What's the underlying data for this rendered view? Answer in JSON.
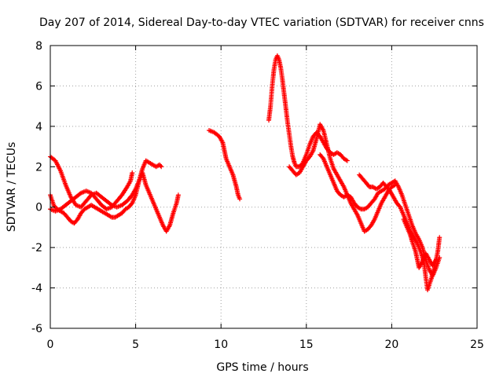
{
  "chart_data": {
    "type": "scatter",
    "title": "Day 207 of 2014, Sidereal Day-to-day VTEC variation (SDTVAR) for receiver cnns",
    "xlabel": "GPS time / hours",
    "ylabel": "SDTVAR / TECUs",
    "xlim": [
      0,
      25
    ],
    "ylim": [
      -6,
      8
    ],
    "x_ticks": [
      0,
      5,
      10,
      15,
      20,
      25
    ],
    "y_ticks": [
      -6,
      -4,
      -2,
      0,
      2,
      4,
      6,
      8
    ],
    "grid": true,
    "marker": "+",
    "series": [
      {
        "name": "SDTVAR",
        "color": "#ff0000",
        "segments": [
          [
            [
              0.0,
              2.5
            ],
            [
              0.3,
              2.3
            ],
            [
              0.6,
              1.8
            ],
            [
              0.9,
              1.1
            ],
            [
              1.2,
              0.5
            ],
            [
              1.5,
              0.1
            ],
            [
              1.8,
              0.0
            ],
            [
              2.1,
              0.3
            ],
            [
              2.4,
              0.6
            ],
            [
              2.7,
              0.7
            ],
            [
              3.0,
              0.5
            ],
            [
              3.3,
              0.3
            ],
            [
              3.6,
              0.1
            ],
            [
              3.9,
              0.0
            ],
            [
              4.2,
              0.1
            ],
            [
              4.5,
              0.3
            ],
            [
              4.8,
              0.6
            ],
            [
              5.0,
              0.9
            ],
            [
              5.2,
              1.3
            ],
            [
              5.4,
              1.7
            ],
            [
              5.6,
              1.1
            ],
            [
              5.8,
              0.7
            ],
            [
              6.0,
              0.3
            ],
            [
              6.2,
              -0.1
            ],
            [
              6.4,
              -0.5
            ],
            [
              6.6,
              -0.9
            ],
            [
              6.8,
              -1.2
            ],
            [
              7.0,
              -0.9
            ],
            [
              7.2,
              -0.3
            ],
            [
              7.4,
              0.2
            ],
            [
              7.5,
              0.6
            ]
          ],
          [
            [
              0.0,
              0.6
            ],
            [
              0.2,
              0.1
            ],
            [
              0.4,
              -0.1
            ],
            [
              0.6,
              -0.2
            ],
            [
              0.8,
              -0.3
            ],
            [
              1.0,
              -0.5
            ],
            [
              1.2,
              -0.7
            ],
            [
              1.4,
              -0.8
            ],
            [
              1.6,
              -0.6
            ],
            [
              1.8,
              -0.3
            ],
            [
              2.0,
              -0.1
            ],
            [
              2.2,
              0.0
            ],
            [
              2.4,
              0.1
            ],
            [
              2.6,
              0.0
            ],
            [
              2.8,
              -0.1
            ],
            [
              3.0,
              -0.2
            ],
            [
              3.2,
              -0.3
            ],
            [
              3.4,
              -0.4
            ],
            [
              3.6,
              -0.5
            ],
            [
              3.8,
              -0.5
            ],
            [
              4.0,
              -0.4
            ],
            [
              4.2,
              -0.3
            ],
            [
              4.4,
              -0.1
            ],
            [
              4.6,
              0.0
            ],
            [
              4.8,
              0.2
            ],
            [
              5.0,
              0.6
            ],
            [
              5.2,
              1.3
            ],
            [
              5.4,
              1.9
            ],
            [
              5.6,
              2.3
            ],
            [
              5.8,
              2.2
            ],
            [
              6.0,
              2.1
            ],
            [
              6.2,
              2.0
            ],
            [
              6.4,
              2.1
            ],
            [
              6.5,
              2.0
            ]
          ],
          [
            [
              0.0,
              -0.1
            ],
            [
              0.3,
              -0.2
            ],
            [
              0.6,
              -0.1
            ],
            [
              0.9,
              0.1
            ],
            [
              1.2,
              0.3
            ],
            [
              1.5,
              0.5
            ],
            [
              1.8,
              0.7
            ],
            [
              2.1,
              0.8
            ],
            [
              2.4,
              0.7
            ],
            [
              2.7,
              0.4
            ],
            [
              3.0,
              0.1
            ],
            [
              3.3,
              -0.1
            ],
            [
              3.6,
              0.0
            ],
            [
              3.9,
              0.3
            ],
            [
              4.2,
              0.6
            ],
            [
              4.5,
              1.0
            ],
            [
              4.7,
              1.3
            ],
            [
              4.8,
              1.7
            ]
          ],
          [
            [
              9.3,
              3.8
            ],
            [
              9.6,
              3.7
            ],
            [
              9.9,
              3.5
            ],
            [
              10.1,
              3.2
            ],
            [
              10.2,
              2.8
            ],
            [
              10.3,
              2.4
            ],
            [
              10.5,
              2.0
            ],
            [
              10.7,
              1.6
            ],
            [
              10.9,
              1.0
            ],
            [
              11.0,
              0.6
            ],
            [
              11.1,
              0.4
            ]
          ],
          [
            [
              12.8,
              4.3
            ],
            [
              12.9,
              5.0
            ],
            [
              13.0,
              6.0
            ],
            [
              13.1,
              6.8
            ],
            [
              13.2,
              7.3
            ],
            [
              13.3,
              7.5
            ],
            [
              13.4,
              7.3
            ],
            [
              13.5,
              6.9
            ],
            [
              13.6,
              6.3
            ],
            [
              13.7,
              5.6
            ],
            [
              13.8,
              4.9
            ],
            [
              13.9,
              4.2
            ],
            [
              14.0,
              3.6
            ],
            [
              14.1,
              3.0
            ],
            [
              14.2,
              2.5
            ],
            [
              14.3,
              2.2
            ],
            [
              14.4,
              2.0
            ],
            [
              14.6,
              2.0
            ],
            [
              14.8,
              2.2
            ],
            [
              15.0,
              2.6
            ],
            [
              15.2,
              3.1
            ],
            [
              15.4,
              3.5
            ],
            [
              15.6,
              3.7
            ],
            [
              15.8,
              3.5
            ],
            [
              16.0,
              3.2
            ],
            [
              16.2,
              2.9
            ],
            [
              16.4,
              2.7
            ],
            [
              16.6,
              2.6
            ],
            [
              16.8,
              2.7
            ],
            [
              17.0,
              2.6
            ],
            [
              17.2,
              2.4
            ],
            [
              17.4,
              2.3
            ]
          ],
          [
            [
              14.0,
              2.0
            ],
            [
              14.2,
              1.8
            ],
            [
              14.4,
              1.6
            ],
            [
              14.6,
              1.7
            ],
            [
              14.8,
              2.0
            ],
            [
              15.0,
              2.3
            ],
            [
              15.2,
              2.5
            ],
            [
              15.4,
              2.8
            ],
            [
              15.6,
              3.4
            ],
            [
              15.8,
              4.1
            ],
            [
              16.0,
              3.8
            ],
            [
              16.2,
              3.1
            ],
            [
              16.4,
              2.4
            ],
            [
              16.6,
              1.9
            ],
            [
              16.8,
              1.6
            ],
            [
              17.0,
              1.3
            ],
            [
              17.2,
              1.0
            ],
            [
              17.4,
              0.6
            ],
            [
              17.6,
              0.2
            ],
            [
              17.8,
              -0.1
            ],
            [
              18.0,
              -0.4
            ],
            [
              18.2,
              -0.8
            ],
            [
              18.4,
              -1.2
            ],
            [
              18.6,
              -1.1
            ],
            [
              18.8,
              -0.9
            ],
            [
              19.0,
              -0.6
            ],
            [
              19.2,
              -0.2
            ],
            [
              19.4,
              0.2
            ],
            [
              19.6,
              0.5
            ],
            [
              19.8,
              0.8
            ],
            [
              20.0,
              1.0
            ],
            [
              20.2,
              1.1
            ]
          ],
          [
            [
              15.8,
              2.6
            ],
            [
              16.0,
              2.4
            ],
            [
              16.2,
              2.0
            ],
            [
              16.4,
              1.6
            ],
            [
              16.6,
              1.2
            ],
            [
              16.8,
              0.8
            ],
            [
              17.0,
              0.6
            ],
            [
              17.2,
              0.5
            ],
            [
              17.4,
              0.6
            ],
            [
              17.6,
              0.5
            ],
            [
              17.8,
              0.2
            ],
            [
              18.0,
              0.0
            ],
            [
              18.2,
              -0.1
            ],
            [
              18.4,
              -0.1
            ],
            [
              18.6,
              0.0
            ],
            [
              18.8,
              0.2
            ],
            [
              19.0,
              0.4
            ],
            [
              19.2,
              0.7
            ],
            [
              19.4,
              0.8
            ],
            [
              19.6,
              0.9
            ],
            [
              19.8,
              1.1
            ],
            [
              20.0,
              1.2
            ],
            [
              20.2,
              1.3
            ],
            [
              20.4,
              1.0
            ],
            [
              20.6,
              0.6
            ],
            [
              20.8,
              0.1
            ],
            [
              21.0,
              -0.4
            ],
            [
              21.2,
              -0.9
            ],
            [
              21.4,
              -1.3
            ],
            [
              21.6,
              -1.6
            ],
            [
              21.8,
              -2.0
            ],
            [
              22.0,
              -2.6
            ],
            [
              22.2,
              -3.1
            ],
            [
              22.4,
              -3.4
            ],
            [
              22.6,
              -3.0
            ],
            [
              22.8,
              -2.5
            ]
          ],
          [
            [
              18.1,
              1.6
            ],
            [
              18.3,
              1.4
            ],
            [
              18.5,
              1.2
            ],
            [
              18.7,
              1.0
            ],
            [
              18.9,
              1.0
            ],
            [
              19.1,
              0.9
            ],
            [
              19.3,
              1.0
            ],
            [
              19.5,
              1.2
            ],
            [
              19.7,
              1.0
            ],
            [
              19.9,
              0.8
            ],
            [
              20.1,
              0.5
            ],
            [
              20.3,
              0.2
            ],
            [
              20.5,
              0.0
            ],
            [
              20.7,
              -0.4
            ],
            [
              20.9,
              -0.8
            ],
            [
              21.1,
              -1.2
            ],
            [
              21.3,
              -1.5
            ],
            [
              21.5,
              -1.8
            ],
            [
              21.7,
              -2.2
            ],
            [
              21.9,
              -2.8
            ],
            [
              22.0,
              -3.5
            ],
            [
              22.1,
              -4.1
            ],
            [
              22.3,
              -3.6
            ],
            [
              22.5,
              -3.0
            ],
            [
              22.7,
              -2.2
            ],
            [
              22.8,
              -1.5
            ]
          ],
          [
            [
              20.7,
              -0.6
            ],
            [
              20.9,
              -1.0
            ],
            [
              21.1,
              -1.4
            ],
            [
              21.2,
              -1.7
            ],
            [
              21.4,
              -2.2
            ],
            [
              21.5,
              -2.6
            ],
            [
              21.6,
              -3.0
            ],
            [
              21.8,
              -2.7
            ],
            [
              22.0,
              -2.3
            ],
            [
              22.2,
              -2.6
            ],
            [
              22.4,
              -2.9
            ],
            [
              22.6,
              -2.6
            ]
          ]
        ]
      }
    ]
  }
}
